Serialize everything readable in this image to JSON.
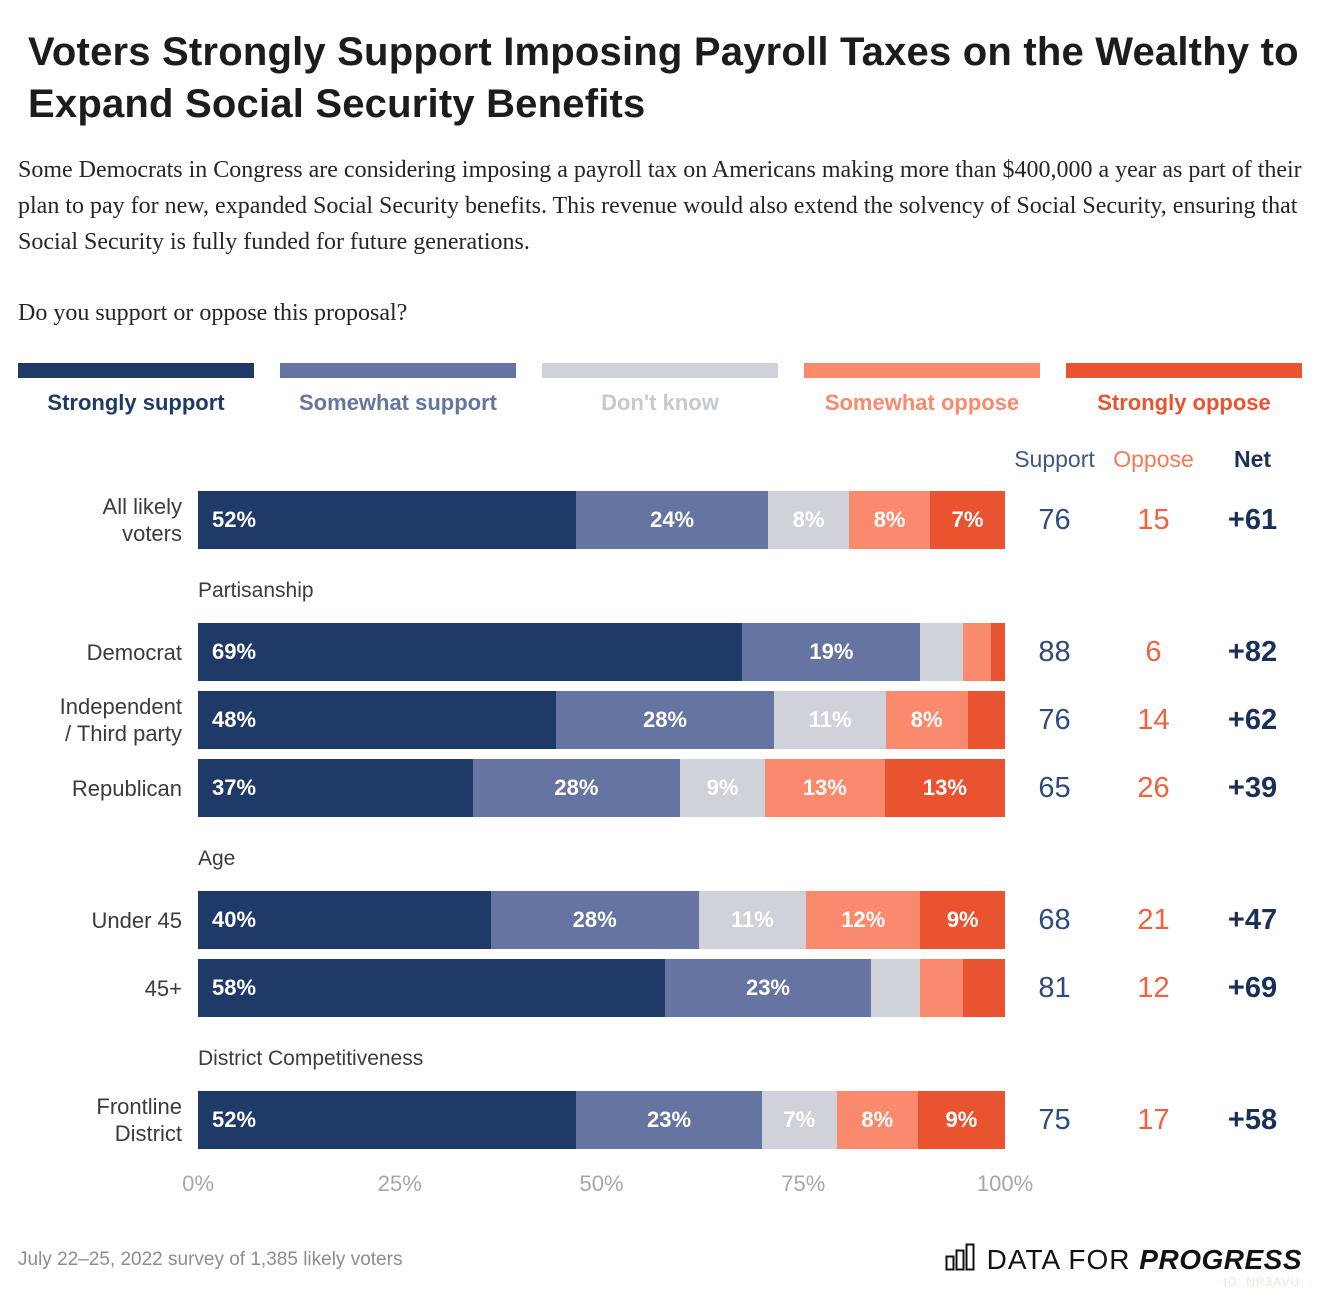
{
  "title": "Voters Strongly Support Imposing Payroll Taxes on the Wealthy to Expand Social Security Benefits",
  "description": "Some Democrats in Congress are considering imposing a payroll tax on Americans making more than $400,000 a year as part of their plan to pay for new, expanded Social Security benefits. This revenue would also extend the solvency of Social Security, ensuring that Social Security is fully funded for future generations.",
  "question": "Do you support or oppose this proposal?",
  "legend": [
    {
      "label": "Strongly support",
      "color": "#1f3a67",
      "text_color": "#1f3a67"
    },
    {
      "label": "Somewhat support",
      "color": "#6674a2",
      "text_color": "#6674a2"
    },
    {
      "label": "Don't know",
      "color": "#cfd2d8",
      "text_color": "#c5c9d0"
    },
    {
      "label": "Somewhat oppose",
      "color": "#f98a6d",
      "text_color": "#f98a6d"
    },
    {
      "label": "Strongly oppose",
      "color": "#e95330",
      "text_color": "#e95330"
    }
  ],
  "columns": {
    "support": "Support",
    "oppose": "Oppose",
    "net": "Net"
  },
  "column_colors": {
    "support_header": "#3d5789",
    "oppose_header": "#f67a55",
    "net_header": "#1b3059",
    "support_value": "#2d4b7e",
    "oppose_value": "#f2613d",
    "net_value": "#1b3059"
  },
  "chart_data": {
    "type": "bar",
    "orientation": "horizontal-stacked",
    "series_names": [
      "Strongly support",
      "Somewhat support",
      "Don't know",
      "Somewhat oppose",
      "Strongly oppose"
    ],
    "xlim": [
      0,
      100
    ],
    "x_ticks": [
      "0%",
      "25%",
      "50%",
      "75%",
      "100%"
    ],
    "groups": [
      {
        "section": null,
        "rows": [
          {
            "label": "All likely\nvoters",
            "values": [
              52,
              24,
              8,
              8,
              7
            ],
            "labels": [
              "52%",
              "24%",
              "8%",
              "8%",
              "7%"
            ],
            "support": "76",
            "oppose": "15",
            "net": "+61"
          }
        ]
      },
      {
        "section": "Partisanship",
        "rows": [
          {
            "label": "Democrat",
            "values": [
              69,
              19,
              6,
              4,
              2
            ],
            "labels": [
              "69%",
              "19%",
              "",
              "",
              ""
            ],
            "support": "88",
            "oppose": "6",
            "net": "+82"
          },
          {
            "label": "Independent\n/ Third party",
            "values": [
              48,
              28,
              11,
              8,
              6
            ],
            "labels": [
              "48%",
              "28%",
              "11%",
              "8%",
              ""
            ],
            "support": "76",
            "oppose": "14",
            "net": "+62"
          },
          {
            "label": "Republican",
            "values": [
              37,
              28,
              9,
              13,
              13
            ],
            "labels": [
              "37%",
              "28%",
              "9%",
              "13%",
              "13%"
            ],
            "support": "65",
            "oppose": "26",
            "net": "+39"
          }
        ]
      },
      {
        "section": "Age",
        "rows": [
          {
            "label": "Under 45",
            "values": [
              40,
              28,
              11,
              12,
              9
            ],
            "labels": [
              "40%",
              "28%",
              "11%",
              "12%",
              "9%"
            ],
            "support": "68",
            "oppose": "21",
            "net": "+47"
          },
          {
            "label": "45+",
            "values": [
              58,
              23,
              7,
              6,
              6
            ],
            "labels": [
              "58%",
              "23%",
              "",
              "",
              ""
            ],
            "support": "81",
            "oppose": "12",
            "net": "+69"
          }
        ]
      },
      {
        "section": "District Competitiveness",
        "rows": [
          {
            "label": "Frontline\nDistrict",
            "values": [
              52,
              23,
              7,
              8,
              9
            ],
            "labels": [
              "52%",
              "23%",
              "7%",
              "8%",
              "9%"
            ],
            "support": "75",
            "oppose": "17",
            "net": "+58"
          }
        ]
      }
    ]
  },
  "footer": {
    "source": "July 22–25, 2022 survey of 1,385 likely voters",
    "logo_prefix": "DATA FOR",
    "logo_suffix": "PROGRESS",
    "watermark": "ID: NR3AVU"
  }
}
